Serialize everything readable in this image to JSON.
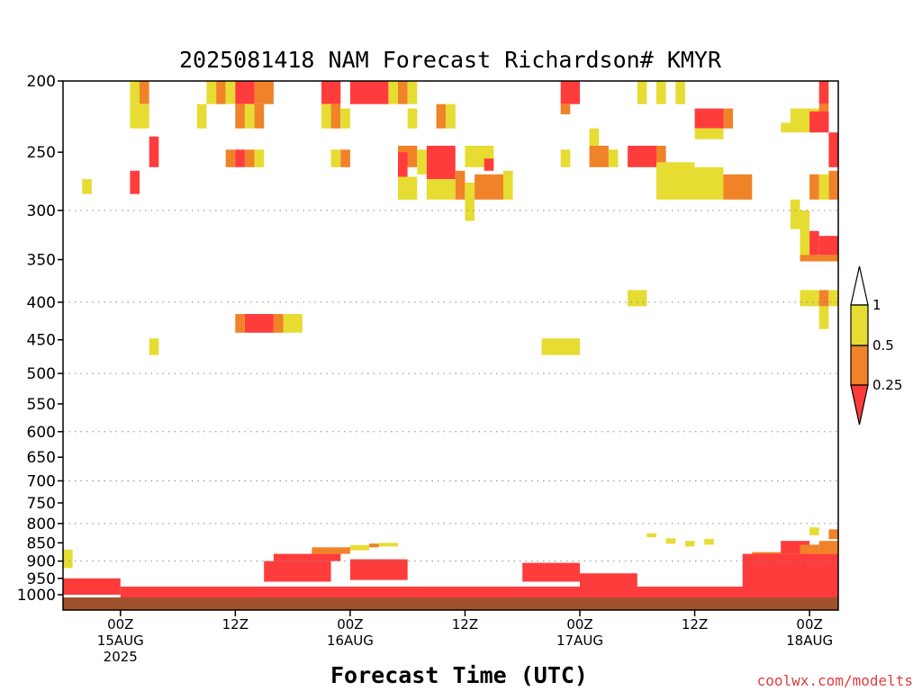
{
  "chart_data": {
    "type": "heatmap",
    "title": "2025081418 NAM Forecast Richardson# KMYR",
    "xlabel": "Forecast Time (UTC)",
    "ylabel": "",
    "y_scale": "log",
    "y_inverted": true,
    "ylim": [
      200,
      1050
    ],
    "yticks": [
      200,
      250,
      300,
      350,
      400,
      450,
      500,
      550,
      600,
      650,
      700,
      750,
      800,
      850,
      900,
      950,
      1000
    ],
    "dotted_gridlines": [
      300,
      400,
      500,
      600,
      700,
      800,
      900
    ],
    "x_start": "2025-08-14 18Z",
    "x_end": "2025-08-18 03Z",
    "xticks": [
      {
        "time": "2025-08-15 00Z",
        "lines": [
          "00Z",
          "15AUG",
          "2025"
        ]
      },
      {
        "time": "2025-08-15 12Z",
        "lines": [
          "12Z"
        ]
      },
      {
        "time": "2025-08-16 00Z",
        "lines": [
          "00Z",
          "16AUG"
        ]
      },
      {
        "time": "2025-08-16 12Z",
        "lines": [
          "12Z"
        ]
      },
      {
        "time": "2025-08-17 00Z",
        "lines": [
          "00Z",
          "17AUG"
        ]
      },
      {
        "time": "2025-08-17 12Z",
        "lines": [
          "12Z"
        ]
      },
      {
        "time": "2025-08-18 00Z",
        "lines": [
          "00Z",
          "18AUG"
        ]
      }
    ],
    "levels": [
      {
        "category": "< 0.25",
        "color": "#ff3c3c"
      },
      {
        "category": "0.25 - 0.5",
        "color": "#f08228"
      },
      {
        "category": "0.5 - 1",
        "color": "#e6dc32"
      },
      {
        "category": "> 1",
        "color": "#ffffff"
      }
    ],
    "colorbar_labels": [
      "1",
      "0.5",
      "0.25"
    ],
    "ground_color": "#a0522d",
    "cells": [
      {
        "t0": "2025-08-15 01Z",
        "t1": "2025-08-15 02Z",
        "p0": 200,
        "p1": 215,
        "cat": "0.5 - 1"
      },
      {
        "t0": "2025-08-15 02Z",
        "t1": "2025-08-15 03Z",
        "p0": 200,
        "p1": 215,
        "cat": "0.25 - 0.5"
      },
      {
        "t0": "2025-08-15 01Z",
        "t1": "2025-08-15 03Z",
        "p0": 215,
        "p1": 232,
        "cat": "0.5 - 1"
      },
      {
        "t0": "2025-08-15 03Z",
        "t1": "2025-08-15 04Z",
        "p0": 238,
        "p1": 262,
        "cat": "< 0.25"
      },
      {
        "t0": "2025-08-15 01Z",
        "t1": "2025-08-15 02Z",
        "p0": 265,
        "p1": 285,
        "cat": "< 0.25"
      },
      {
        "t0": "2025-08-14 20Z",
        "t1": "2025-08-14 21Z",
        "p0": 272,
        "p1": 285,
        "cat": "0.5 - 1"
      },
      {
        "t0": "2025-08-15 08Z",
        "t1": "2025-08-15 09Z",
        "p0": 215,
        "p1": 232,
        "cat": "0.5 - 1"
      },
      {
        "t0": "2025-08-15 09Z",
        "t1": "2025-08-15 10Z",
        "p0": 200,
        "p1": 215,
        "cat": "0.5 - 1"
      },
      {
        "t0": "2025-08-15 10Z",
        "t1": "2025-08-15 11Z",
        "p0": 200,
        "p1": 215,
        "cat": "0.25 - 0.5"
      },
      {
        "t0": "2025-08-15 11Z",
        "t1": "2025-08-15 12Z",
        "p0": 200,
        "p1": 215,
        "cat": "0.5 - 1"
      },
      {
        "t0": "2025-08-15 12Z",
        "t1": "2025-08-15 14Z",
        "p0": 200,
        "p1": 215,
        "cat": "< 0.25"
      },
      {
        "t0": "2025-08-15 14Z",
        "t1": "2025-08-15 16Z",
        "p0": 200,
        "p1": 215,
        "cat": "0.25 - 0.5"
      },
      {
        "t0": "2025-08-15 12Z",
        "t1": "2025-08-15 13Z",
        "p0": 215,
        "p1": 232,
        "cat": "0.25 - 0.5"
      },
      {
        "t0": "2025-08-15 13Z",
        "t1": "2025-08-15 14Z",
        "p0": 215,
        "p1": 232,
        "cat": "0.5 - 1"
      },
      {
        "t0": "2025-08-15 14Z",
        "t1": "2025-08-15 15Z",
        "p0": 215,
        "p1": 232,
        "cat": "0.25 - 0.5"
      },
      {
        "t0": "2025-08-15 11Z",
        "t1": "2025-08-15 12Z",
        "p0": 248,
        "p1": 262,
        "cat": "0.25 - 0.5"
      },
      {
        "t0": "2025-08-15 12Z",
        "t1": "2025-08-15 13Z",
        "p0": 248,
        "p1": 262,
        "cat": "< 0.25"
      },
      {
        "t0": "2025-08-15 13Z",
        "t1": "2025-08-15 14Z",
        "p0": 248,
        "p1": 262,
        "cat": "0.25 - 0.5"
      },
      {
        "t0": "2025-08-15 14Z",
        "t1": "2025-08-15 15Z",
        "p0": 248,
        "p1": 262,
        "cat": "0.5 - 1"
      },
      {
        "t0": "2025-08-15 21Z",
        "t1": "2025-08-15 23Z",
        "p0": 200,
        "p1": 215,
        "cat": "< 0.25"
      },
      {
        "t0": "2025-08-15 21Z",
        "t1": "2025-08-15 22Z",
        "p0": 215,
        "p1": 232,
        "cat": "0.5 - 1"
      },
      {
        "t0": "2025-08-15 22Z",
        "t1": "2025-08-15 23Z",
        "p0": 215,
        "p1": 232,
        "cat": "0.25 - 0.5"
      },
      {
        "t0": "2025-08-15 23Z",
        "t1": "2025-08-16 00Z",
        "p0": 218,
        "p1": 232,
        "cat": "0.5 - 1"
      },
      {
        "t0": "2025-08-15 22Z",
        "t1": "2025-08-15 23Z",
        "p0": 248,
        "p1": 262,
        "cat": "0.5 - 1"
      },
      {
        "t0": "2025-08-15 23Z",
        "t1": "2025-08-16 00Z",
        "p0": 248,
        "p1": 262,
        "cat": "0.25 - 0.5"
      },
      {
        "t0": "2025-08-16 00Z",
        "t1": "2025-08-16 04Z",
        "p0": 200,
        "p1": 215,
        "cat": "< 0.25"
      },
      {
        "t0": "2025-08-16 04Z",
        "t1": "2025-08-16 05Z",
        "p0": 200,
        "p1": 215,
        "cat": "0.5 - 1"
      },
      {
        "t0": "2025-08-16 05Z",
        "t1": "2025-08-16 06Z",
        "p0": 200,
        "p1": 215,
        "cat": "0.25 - 0.5"
      },
      {
        "t0": "2025-08-16 06Z",
        "t1": "2025-08-16 07Z",
        "p0": 200,
        "p1": 215,
        "cat": "0.5 - 1"
      },
      {
        "t0": "2025-08-16 06Z",
        "t1": "2025-08-16 07Z",
        "p0": 218,
        "p1": 232,
        "cat": "0.5 - 1"
      },
      {
        "t0": "2025-08-16 05Z",
        "t1": "2025-08-16 07Z",
        "p0": 245,
        "p1": 262,
        "cat": "0.25 - 0.5"
      },
      {
        "t0": "2025-08-16 05Z",
        "t1": "2025-08-16 06Z",
        "p0": 250,
        "p1": 272,
        "cat": "< 0.25"
      },
      {
        "t0": "2025-08-16 07Z",
        "t1": "2025-08-16 08Z",
        "p0": 248,
        "p1": 268,
        "cat": "0.5 - 1"
      },
      {
        "t0": "2025-08-16 05Z",
        "t1": "2025-08-16 07Z",
        "p0": 270,
        "p1": 290,
        "cat": "0.5 - 1"
      },
      {
        "t0": "2025-08-16 08Z",
        "t1": "2025-08-16 11Z",
        "p0": 245,
        "p1": 272,
        "cat": "< 0.25"
      },
      {
        "t0": "2025-08-16 09Z",
        "t1": "2025-08-16 10Z",
        "p0": 215,
        "p1": 232,
        "cat": "0.25 - 0.5"
      },
      {
        "t0": "2025-08-16 10Z",
        "t1": "2025-08-16 11Z",
        "p0": 215,
        "p1": 232,
        "cat": "0.5 - 1"
      },
      {
        "t0": "2025-08-16 08Z",
        "t1": "2025-08-16 11Z",
        "p0": 272,
        "p1": 290,
        "cat": "0.5 - 1"
      },
      {
        "t0": "2025-08-16 11Z",
        "t1": "2025-08-16 12Z",
        "p0": 265,
        "p1": 290,
        "cat": "0.25 - 0.5"
      },
      {
        "t0": "2025-08-16 12Z",
        "t1": "2025-08-16 13Z",
        "p0": 275,
        "p1": 310,
        "cat": "0.5 - 1"
      },
      {
        "t0": "2025-08-16 13Z",
        "t1": "2025-08-16 16Z",
        "p0": 268,
        "p1": 290,
        "cat": "0.25 - 0.5"
      },
      {
        "t0": "2025-08-16 12Z",
        "t1": "2025-08-16 15Z",
        "p0": 245,
        "p1": 262,
        "cat": "0.5 - 1"
      },
      {
        "t0": "2025-08-16 14Z",
        "t1": "2025-08-16 15Z",
        "p0": 255,
        "p1": 265,
        "cat": "< 0.25"
      },
      {
        "t0": "2025-08-16 16Z",
        "t1": "2025-08-16 17Z",
        "p0": 265,
        "p1": 290,
        "cat": "0.5 - 1"
      },
      {
        "t0": "2025-08-16 22Z",
        "t1": "2025-08-17 00Z",
        "p0": 200,
        "p1": 215,
        "cat": "< 0.25"
      },
      {
        "t0": "2025-08-16 22Z",
        "t1": "2025-08-16 23Z",
        "p0": 215,
        "p1": 222,
        "cat": "0.25 - 0.5"
      },
      {
        "t0": "2025-08-16 22Z",
        "t1": "2025-08-16 23Z",
        "p0": 248,
        "p1": 262,
        "cat": "0.5 - 1"
      },
      {
        "t0": "2025-08-17 01Z",
        "t1": "2025-08-17 02Z",
        "p0": 232,
        "p1": 245,
        "cat": "0.5 - 1"
      },
      {
        "t0": "2025-08-17 01Z",
        "t1": "2025-08-17 03Z",
        "p0": 245,
        "p1": 262,
        "cat": "0.25 - 0.5"
      },
      {
        "t0": "2025-08-17 03Z",
        "t1": "2025-08-17 04Z",
        "p0": 248,
        "p1": 262,
        "cat": "0.5 - 1"
      },
      {
        "t0": "2025-08-17 06Z",
        "t1": "2025-08-17 07Z",
        "p0": 200,
        "p1": 215,
        "cat": "0.5 - 1"
      },
      {
        "t0": "2025-08-17 08Z",
        "t1": "2025-08-17 09Z",
        "p0": 200,
        "p1": 215,
        "cat": "0.5 - 1"
      },
      {
        "t0": "2025-08-17 10Z",
        "t1": "2025-08-17 11Z",
        "p0": 200,
        "p1": 215,
        "cat": "0.5 - 1"
      },
      {
        "t0": "2025-08-17 05Z",
        "t1": "2025-08-17 08Z",
        "p0": 245,
        "p1": 262,
        "cat": "< 0.25"
      },
      {
        "t0": "2025-08-17 08Z",
        "t1": "2025-08-17 09Z",
        "p0": 245,
        "p1": 262,
        "cat": "0.25 - 0.5"
      },
      {
        "t0": "2025-08-17 08Z",
        "t1": "2025-08-17 12Z",
        "p0": 258,
        "p1": 290,
        "cat": "0.5 - 1"
      },
      {
        "t0": "2025-08-17 12Z",
        "t1": "2025-08-17 15Z",
        "p0": 218,
        "p1": 232,
        "cat": "< 0.25"
      },
      {
        "t0": "2025-08-17 15Z",
        "t1": "2025-08-17 16Z",
        "p0": 218,
        "p1": 232,
        "cat": "0.25 - 0.5"
      },
      {
        "t0": "2025-08-17 12Z",
        "t1": "2025-08-17 15Z",
        "p0": 232,
        "p1": 240,
        "cat": "0.5 - 1"
      },
      {
        "t0": "2025-08-17 12Z",
        "t1": "2025-08-17 15Z",
        "p0": 262,
        "p1": 290,
        "cat": "0.5 - 1"
      },
      {
        "t0": "2025-08-17 15Z",
        "t1": "2025-08-17 18Z",
        "p0": 268,
        "p1": 290,
        "cat": "0.25 - 0.5"
      },
      {
        "t0": "2025-08-17 22Z",
        "t1": "2025-08-18 01Z",
        "p0": 218,
        "p1": 232,
        "cat": "0.5 - 1"
      },
      {
        "t0": "2025-08-17 21Z",
        "t1": "2025-08-18 01Z",
        "p0": 228,
        "p1": 235,
        "cat": "0.5 - 1"
      },
      {
        "t0": "2025-08-18 01Z",
        "t1": "2025-08-18 02Z",
        "p0": 200,
        "p1": 215,
        "cat": "< 0.25"
      },
      {
        "t0": "2025-08-18 01Z",
        "t1": "2025-08-18 02Z",
        "p0": 215,
        "p1": 232,
        "cat": "0.25 - 0.5"
      },
      {
        "t0": "2025-08-18 00Z",
        "t1": "2025-08-18 02Z",
        "p0": 220,
        "p1": 235,
        "cat": "< 0.25"
      },
      {
        "t0": "2025-08-18 02Z",
        "t1": "2025-08-18 03Z",
        "p0": 235,
        "p1": 262,
        "cat": "< 0.25"
      },
      {
        "t0": "2025-08-18 02Z",
        "t1": "2025-08-18 03Z",
        "p0": 265,
        "p1": 290,
        "cat": "0.25 - 0.5"
      },
      {
        "t0": "2025-08-18 00Z",
        "t1": "2025-08-18 01Z",
        "p0": 268,
        "p1": 290,
        "cat": "0.25 - 0.5"
      },
      {
        "t0": "2025-08-18 01Z",
        "t1": "2025-08-18 02Z",
        "p0": 268,
        "p1": 290,
        "cat": "0.5 - 1"
      },
      {
        "t0": "2025-08-17 22Z",
        "t1": "2025-08-17 23Z",
        "p0": 290,
        "p1": 318,
        "cat": "0.5 - 1"
      },
      {
        "t0": "2025-08-17 23Z",
        "t1": "2025-08-18 00Z",
        "p0": 300,
        "p1": 345,
        "cat": "0.5 - 1"
      },
      {
        "t0": "2025-08-18 00Z",
        "t1": "2025-08-18 01Z",
        "p0": 320,
        "p1": 345,
        "cat": "< 0.25"
      },
      {
        "t0": "2025-08-18 01Z",
        "t1": "2025-08-18 03Z",
        "p0": 325,
        "p1": 345,
        "cat": "< 0.25"
      },
      {
        "t0": "2025-08-17 23Z",
        "t1": "2025-08-18 03Z",
        "p0": 345,
        "p1": 352,
        "cat": "0.25 - 0.5"
      },
      {
        "t0": "2025-08-17 05Z",
        "t1": "2025-08-17 07Z",
        "p0": 385,
        "p1": 405,
        "cat": "0.5 - 1"
      },
      {
        "t0": "2025-08-17 23Z",
        "t1": "2025-08-18 01Z",
        "p0": 385,
        "p1": 405,
        "cat": "0.5 - 1"
      },
      {
        "t0": "2025-08-18 01Z",
        "t1": "2025-08-18 02Z",
        "p0": 385,
        "p1": 405,
        "cat": "0.25 - 0.5"
      },
      {
        "t0": "2025-08-18 02Z",
        "t1": "2025-08-18 03Z",
        "p0": 385,
        "p1": 405,
        "cat": "0.5 - 1"
      },
      {
        "t0": "2025-08-18 01Z",
        "t1": "2025-08-18 02Z",
        "p0": 405,
        "p1": 435,
        "cat": "0.5 - 1"
      },
      {
        "t0": "2025-08-15 12Z",
        "t1": "2025-08-15 13Z",
        "p0": 415,
        "p1": 440,
        "cat": "0.25 - 0.5"
      },
      {
        "t0": "2025-08-15 13Z",
        "t1": "2025-08-15 16Z",
        "p0": 415,
        "p1": 440,
        "cat": "< 0.25"
      },
      {
        "t0": "2025-08-15 16Z",
        "t1": "2025-08-15 17Z",
        "p0": 415,
        "p1": 440,
        "cat": "0.25 - 0.5"
      },
      {
        "t0": "2025-08-15 17Z",
        "t1": "2025-08-15 19Z",
        "p0": 415,
        "p1": 440,
        "cat": "0.5 - 1"
      },
      {
        "t0": "2025-08-15 03Z",
        "t1": "2025-08-15 04Z",
        "p0": 448,
        "p1": 472,
        "cat": "0.5 - 1"
      },
      {
        "t0": "2025-08-16 20Z",
        "t1": "2025-08-17 00Z",
        "p0": 448,
        "p1": 472,
        "cat": "0.5 - 1"
      },
      {
        "t0": "2025-08-17 07Z",
        "t1": "2025-08-17 08Z",
        "p0": 825,
        "p1": 835,
        "cat": "0.5 - 1"
      },
      {
        "t0": "2025-08-17 09Z",
        "t1": "2025-08-17 10Z",
        "p0": 838,
        "p1": 852,
        "cat": "0.5 - 1"
      },
      {
        "t0": "2025-08-17 11Z",
        "t1": "2025-08-17 12Z",
        "p0": 845,
        "p1": 860,
        "cat": "0.5 - 1"
      },
      {
        "t0": "2025-08-17 13Z",
        "t1": "2025-08-17 14Z",
        "p0": 840,
        "p1": 855,
        "cat": "0.5 - 1"
      },
      {
        "t0": "2025-08-16 00Z",
        "t1": "2025-08-16 02Z",
        "p0": 856,
        "p1": 870,
        "cat": "0.5 - 1"
      },
      {
        "t0": "2025-08-16 02Z",
        "t1": "2025-08-16 03Z",
        "p0": 852,
        "p1": 862,
        "cat": "0.25 - 0.5"
      },
      {
        "t0": "2025-08-16 03Z",
        "t1": "2025-08-16 05Z",
        "p0": 850,
        "p1": 860,
        "cat": "0.5 - 1"
      },
      {
        "t0": "2025-08-15 20Z",
        "t1": "2025-08-16 00Z",
        "p0": 862,
        "p1": 880,
        "cat": "0.25 - 0.5"
      },
      {
        "t0": "2025-08-14 18Z",
        "t1": "2025-08-14 19Z",
        "p0": 868,
        "p1": 920,
        "cat": "0.5 - 1"
      },
      {
        "t0": "2025-08-17 18Z",
        "t1": "2025-08-17 21Z",
        "p0": 875,
        "p1": 905,
        "cat": "0.25 - 0.5"
      },
      {
        "t0": "2025-08-17 21Z",
        "t1": "2025-08-18 00Z",
        "p0": 845,
        "p1": 880,
        "cat": "< 0.25"
      },
      {
        "t0": "2025-08-17 23Z",
        "t1": "2025-08-18 01Z",
        "p0": 855,
        "p1": 880,
        "cat": "0.25 - 0.5"
      },
      {
        "t0": "2025-08-18 01Z",
        "t1": "2025-08-18 03Z",
        "p0": 845,
        "p1": 880,
        "cat": "0.25 - 0.5"
      },
      {
        "t0": "2025-08-18 00Z",
        "t1": "2025-08-18 01Z",
        "p0": 810,
        "p1": 830,
        "cat": "0.5 - 1"
      },
      {
        "t0": "2025-08-18 02Z",
        "t1": "2025-08-18 03Z",
        "p0": 815,
        "p1": 840,
        "cat": "0.25 - 0.5"
      },
      {
        "t0": "2025-08-15 15Z",
        "t1": "2025-08-15 22Z",
        "p0": 900,
        "p1": 960,
        "cat": "< 0.25"
      },
      {
        "t0": "2025-08-15 16Z",
        "t1": "2025-08-15 23Z",
        "p0": 880,
        "p1": 900,
        "cat": "< 0.25"
      },
      {
        "t0": "2025-08-16 00Z",
        "t1": "2025-08-16 06Z",
        "p0": 895,
        "p1": 955,
        "cat": "< 0.25"
      },
      {
        "t0": "2025-08-16 18Z",
        "t1": "2025-08-17 00Z",
        "p0": 905,
        "p1": 960,
        "cat": "< 0.25"
      },
      {
        "t0": "2025-08-17 00Z",
        "t1": "2025-08-17 06Z",
        "p0": 935,
        "p1": 975,
        "cat": "< 0.25"
      },
      {
        "t0": "2025-08-17 17Z",
        "t1": "2025-08-18 03Z",
        "p0": 880,
        "p1": 980,
        "cat": "< 0.25"
      },
      {
        "t0": "2025-08-14 18Z",
        "t1": "2025-08-15 00Z",
        "p0": 950,
        "p1": 1000,
        "cat": "< 0.25"
      },
      {
        "t0": "2025-08-15 00Z",
        "t1": "2025-08-18 03Z",
        "p0": 975,
        "p1": 1010,
        "cat": "< 0.25"
      },
      {
        "t0": "2025-08-16 08Z",
        "t1": "2025-08-16 12Z",
        "p0": 990,
        "p1": 1010,
        "cat": "< 0.25"
      }
    ]
  },
  "watermark": "coolwx.com/modelts"
}
